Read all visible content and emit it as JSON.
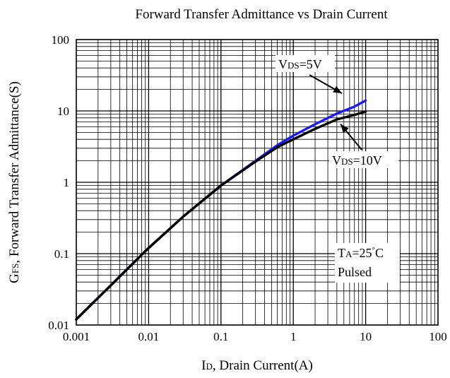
{
  "chart_data": {
    "type": "line",
    "title": "Forward Transfer Admittance vs Drain Current",
    "xlabel": {
      "prefix": "I",
      "sub": "D",
      "rest": ", Drain Current(A)"
    },
    "ylabel": {
      "prefix": "G",
      "sub": "FS",
      "rest": ", Forward Transfer Admittance(S)"
    },
    "x_scale": "log",
    "y_scale": "log",
    "xlim": [
      0.001,
      100
    ],
    "ylim": [
      0.01,
      100
    ],
    "grid": true,
    "x_ticks": [
      "0.001",
      "0.01",
      "0.1",
      "1",
      "10",
      "100"
    ],
    "y_ticks": [
      "0.01",
      "0.1",
      "1",
      "10",
      "100"
    ],
    "series": [
      {
        "name": "VDS=5V",
        "color": "#1a1aff",
        "points": [
          [
            0.001,
            0.012
          ],
          [
            0.003,
            0.036
          ],
          [
            0.01,
            0.12
          ],
          [
            0.03,
            0.33
          ],
          [
            0.1,
            0.9
          ],
          [
            0.3,
            2.0
          ],
          [
            0.6,
            3.3
          ],
          [
            1,
            4.5
          ],
          [
            2,
            6.5
          ],
          [
            4,
            9.2
          ],
          [
            7,
            11.5
          ],
          [
            10,
            14.0
          ]
        ]
      },
      {
        "name": "VDS=10V",
        "color": "#000000",
        "points": [
          [
            0.001,
            0.012
          ],
          [
            0.003,
            0.036
          ],
          [
            0.01,
            0.12
          ],
          [
            0.03,
            0.33
          ],
          [
            0.1,
            0.9
          ],
          [
            0.3,
            1.95
          ],
          [
            0.6,
            3.1
          ],
          [
            1,
            4.0
          ],
          [
            2,
            5.6
          ],
          [
            4,
            7.6
          ],
          [
            7,
            8.8
          ],
          [
            10,
            9.8
          ]
        ]
      }
    ],
    "annotations": [
      {
        "id": "vds5",
        "main": "V",
        "sub": "DS",
        "rest": "=5V",
        "arrow_to": [
          4.5,
          9.3
        ]
      },
      {
        "id": "vds10",
        "main": "V",
        "sub": "DS",
        "rest": "=10V",
        "arrow_to": [
          4.5,
          7.5
        ]
      },
      {
        "id": "ta",
        "main": "T",
        "sub": "A",
        "rest": "=25",
        "deg": "°",
        "unit": "C",
        "line2": "Pulsed"
      }
    ]
  }
}
